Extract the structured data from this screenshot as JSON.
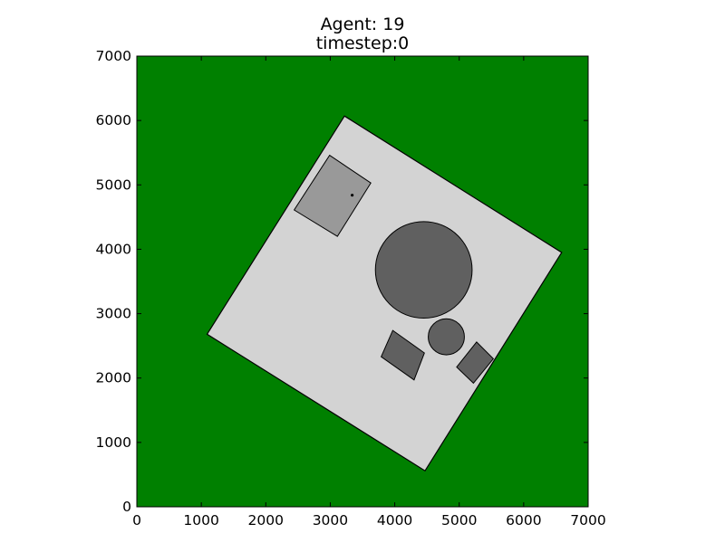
{
  "chart_data": {
    "type": "scatter",
    "title_line1": "Agent: 19",
    "title_line2": "timestep:0",
    "xlabel": "",
    "ylabel": "",
    "xlim": [
      0,
      7000
    ],
    "ylim": [
      0,
      7000
    ],
    "xticks": [
      0,
      1000,
      2000,
      3000,
      4000,
      5000,
      6000,
      7000
    ],
    "yticks": [
      0,
      1000,
      2000,
      3000,
      4000,
      5000,
      6000,
      7000
    ],
    "grid": false,
    "colors": {
      "background": "#008000",
      "floor": "#d3d3d3",
      "start_zone": "#999999",
      "obstacle": "#606060",
      "edge": "#000000"
    },
    "floor_polygon": [
      [
        3220,
        6070
      ],
      [
        6590,
        3950
      ],
      [
        4470,
        560
      ],
      [
        1090,
        2680
      ]
    ],
    "start_zone_polygon": [
      [
        2990,
        5460
      ],
      [
        3630,
        5030
      ],
      [
        3110,
        4200
      ],
      [
        2440,
        4610
      ]
    ],
    "obstacles": [
      {
        "kind": "circle",
        "center": [
          4450,
          3680
        ],
        "radius": 750
      },
      {
        "kind": "circle",
        "center": [
          4800,
          2640
        ],
        "radius": 280
      },
      {
        "kind": "polygon",
        "points": [
          [
            3970,
            2740
          ],
          [
            4460,
            2390
          ],
          [
            4300,
            1970
          ],
          [
            3790,
            2330
          ]
        ]
      },
      {
        "kind": "polygon",
        "points": [
          [
            5270,
            2560
          ],
          [
            5530,
            2300
          ],
          [
            5220,
            1920
          ],
          [
            4960,
            2170
          ]
        ]
      }
    ],
    "agents": [
      {
        "id": 19,
        "position": [
          3340,
          4840
        ]
      }
    ]
  }
}
